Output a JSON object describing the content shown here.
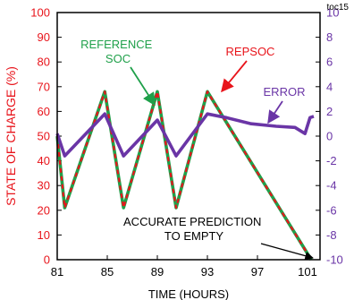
{
  "chart_data": {
    "type": "line",
    "figure_id": "toc15",
    "xlabel": "TIME (HOURS)",
    "ylabel_left": "STATE OF CHARGE (%)",
    "ylabel_right": "",
    "x_ticks": [
      "81",
      "85",
      "89",
      "93",
      "97",
      "101"
    ],
    "xlim": [
      81,
      102
    ],
    "ylim_left": [
      0,
      100
    ],
    "ylim_right": [
      -10,
      10
    ],
    "y_ticks_left": [
      "0",
      "10",
      "20",
      "30",
      "40",
      "50",
      "60",
      "70",
      "80",
      "90",
      "100"
    ],
    "y_ticks_right": [
      "-10",
      "-8",
      "-6",
      "-4",
      "-2",
      "0",
      "2",
      "4",
      "6",
      "8",
      "10"
    ],
    "grid": false,
    "colors": {
      "reference": "#1fa04a",
      "repsoc": "#e8141b",
      "error": "#6a35a6",
      "axis_left": "#e8141b",
      "axis_right": "#6a35a6"
    },
    "series": [
      {
        "name": "REFERENCE SOC",
        "axis": "left",
        "x": [
          81,
          81.6,
          84.8,
          86.3,
          89.0,
          90.5,
          93.0,
          101.3
        ],
        "y": [
          50,
          21,
          68,
          21,
          68,
          21,
          68,
          0
        ]
      },
      {
        "name": "REPSOC",
        "axis": "left",
        "x": [
          81,
          81.6,
          84.8,
          86.3,
          89.0,
          90.5,
          93.0,
          101.3
        ],
        "y": [
          50,
          21,
          68,
          21,
          68,
          21,
          68,
          0
        ]
      },
      {
        "name": "ERROR",
        "axis": "right",
        "x": [
          81,
          81.6,
          84.8,
          86.3,
          89.0,
          90.5,
          93.0,
          94.5,
          96.5,
          98.5,
          100.0,
          100.8,
          101.2,
          101.5
        ],
        "y": [
          0.2,
          -1.6,
          1.8,
          -1.6,
          1.3,
          -1.6,
          1.8,
          1.5,
          1.0,
          0.8,
          0.7,
          0.2,
          1.5,
          1.6
        ]
      }
    ],
    "annotations": {
      "reference_soc": "REFERENCE\nSOC",
      "repsoc": "REPSOC",
      "error": "ERROR",
      "prediction": "ACCURATE PREDICTION\nTO EMPTY"
    }
  }
}
